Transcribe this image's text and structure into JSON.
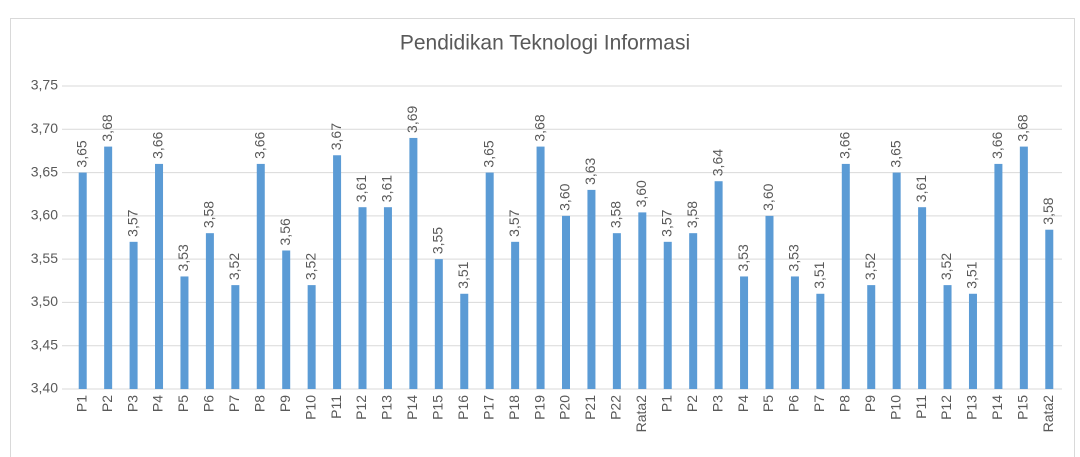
{
  "chart_data": {
    "type": "bar",
    "title": "Pendidikan Teknologi Informasi",
    "categories": [
      "P1",
      "P2",
      "P3",
      "P4",
      "P5",
      "P6",
      "P7",
      "P8",
      "P9",
      "P10",
      "P11",
      "P12",
      "P13",
      "P14",
      "P15",
      "P16",
      "P17",
      "P18",
      "P19",
      "P20",
      "P21",
      "P22",
      "Rata2",
      "P1",
      "P2",
      "P3",
      "P4",
      "P5",
      "P6",
      "P7",
      "P8",
      "P9",
      "P10",
      "P11",
      "P12",
      "P13",
      "P14",
      "P15",
      "Rata2"
    ],
    "values": [
      3.65,
      3.68,
      3.57,
      3.66,
      3.53,
      3.58,
      3.52,
      3.66,
      3.56,
      3.52,
      3.67,
      3.61,
      3.61,
      3.69,
      3.55,
      3.51,
      3.65,
      3.57,
      3.68,
      3.6,
      3.63,
      3.58,
      3.604,
      3.57,
      3.58,
      3.64,
      3.53,
      3.6,
      3.53,
      3.51,
      3.66,
      3.52,
      3.65,
      3.61,
      3.52,
      3.51,
      3.66,
      3.68,
      3.584
    ],
    "value_labels": [
      "3,65",
      "3,68",
      "3,57",
      "3,66",
      "3,53",
      "3,58",
      "3,52",
      "3,66",
      "3,56",
      "3,52",
      "3,67",
      "3,61",
      "3,61",
      "3,69",
      "3,55",
      "3,51",
      "3,65",
      "3,57",
      "3,68",
      "3,60",
      "3,63",
      "3,58",
      "3,60",
      "3,57",
      "3,58",
      "3,64",
      "3,53",
      "3,60",
      "3,53",
      "3,51",
      "3,66",
      "3,52",
      "3,65",
      "3,61",
      "3,52",
      "3,51",
      "3,66",
      "3,68",
      "3,58"
    ],
    "color": "#5b9bd5",
    "ylim": [
      3.4,
      3.75
    ],
    "yticks": [
      {
        "value": 3.4,
        "label": "3,40"
      },
      {
        "value": 3.45,
        "label": "3,45"
      },
      {
        "value": 3.5,
        "label": "3,50"
      },
      {
        "value": 3.55,
        "label": "3,55"
      },
      {
        "value": 3.6,
        "label": "3,60"
      },
      {
        "value": 3.65,
        "label": "3,65"
      },
      {
        "value": 3.7,
        "label": "3,70"
      },
      {
        "value": 3.75,
        "label": "3,75"
      }
    ],
    "grid": true
  }
}
